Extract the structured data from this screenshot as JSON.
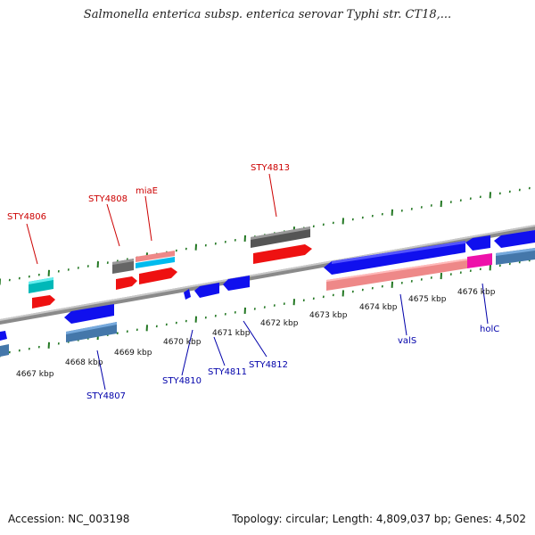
{
  "title": "Salmonella enterica subsp. enterica serovar Typhi str. CT18,...",
  "footer": {
    "accession": "Accession: NC_003198",
    "summary": "Topology: circular; Length: 4,809,037 bp; Genes: 4,502"
  },
  "colors": {
    "backbone": "#808080",
    "tick_green": "#227722",
    "label_red": "#cc0000",
    "label_blue": "#0000aa",
    "gene_blue": "#1010ee",
    "gene_red": "#ee1111",
    "gene_pink": "#ee8888",
    "gene_cyan": "#00cccc",
    "gene_grey": "#666666",
    "gene_steel": "#4477aa",
    "gene_magenta": "#ee11aa"
  },
  "scale_labels": [
    "4667 kbp",
    "4668 kbp",
    "4669 kbp",
    "4670 kbp",
    "4671 kbp",
    "4672 kbp",
    "4673 kbp",
    "4674 kbp",
    "4675 kbp",
    "4676 kbp"
  ],
  "gene_labels": {
    "top": [
      "STY4806",
      "STY4808",
      "miaE",
      "STY4813"
    ],
    "bottom": [
      "STY4807",
      "STY4810",
      "STY4811",
      "STY4812",
      "valS",
      "holC"
    ]
  }
}
